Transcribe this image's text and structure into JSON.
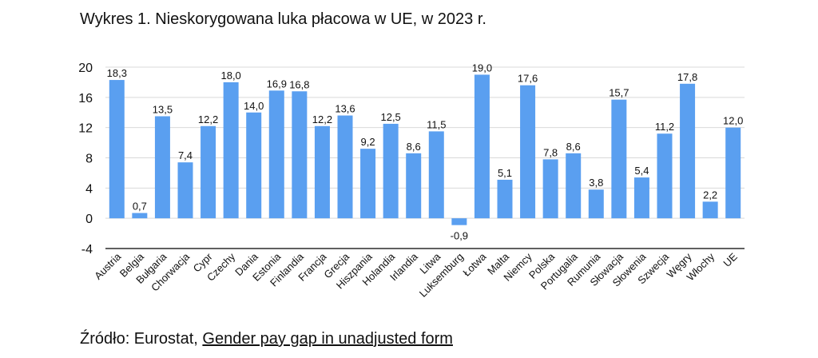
{
  "title": "Wykres 1. Nieskorygowana luka płacowa w UE, w 2023 r.",
  "source": {
    "prefix": "Źródło: Eurostat, ",
    "link_text": "Gender pay gap in unadjusted form"
  },
  "colors": {
    "bar": "#5a9ff0",
    "grid": "#d9d9d9",
    "axis": "#000000"
  },
  "chart_data": {
    "type": "bar",
    "categories": [
      "Austria",
      "Belgia",
      "Bułgaria",
      "Chorwacja",
      "Cypr",
      "Czechy",
      "Dania",
      "Estonia",
      "Finlandia",
      "Francja",
      "Grecja",
      "Hiszpania",
      "Holandia",
      "Irlandia",
      "Litwa",
      "Luksemburg",
      "Łotwa",
      "Malta",
      "Niemcy",
      "Polska",
      "Portugalia",
      "Rumunia",
      "Słowacja",
      "Słowenia",
      "Szwecja",
      "Węgry",
      "Włochy",
      "UE"
    ],
    "values": [
      18.3,
      0.7,
      13.5,
      7.4,
      12.2,
      18.0,
      14.0,
      16.9,
      16.8,
      12.2,
      13.6,
      9.2,
      12.5,
      8.6,
      11.5,
      -0.9,
      19.0,
      5.1,
      17.6,
      7.8,
      8.6,
      3.8,
      15.7,
      5.4,
      11.2,
      17.8,
      2.2,
      12.0
    ],
    "value_labels": [
      "18,3",
      "0,7",
      "13,5",
      "7,4",
      "12,2",
      "18,0",
      "14,0",
      "16,9",
      "16,8",
      "12,2",
      "13,6",
      "9,2",
      "12,5",
      "8,6",
      "11,5",
      "-0,9",
      "19,0",
      "5,1",
      "17,6",
      "7,8",
      "8,6",
      "3,8",
      "15,7",
      "5,4",
      "11,2",
      "17,8",
      "2,2",
      "12,0"
    ],
    "yticks": [
      20,
      16,
      12,
      8,
      4,
      0,
      -4
    ],
    "ylim": [
      -4,
      20
    ],
    "grid": true,
    "legend": false
  }
}
